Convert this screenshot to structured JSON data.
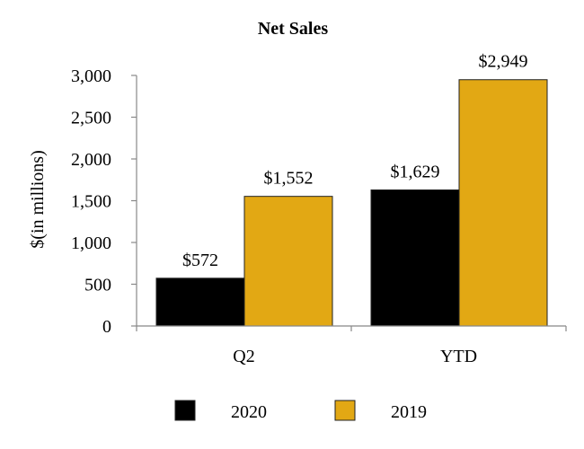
{
  "chart_data": {
    "type": "bar",
    "title": "Net Sales",
    "xlabel": "",
    "ylabel": "$(in millions)",
    "ylim": [
      0,
      3000
    ],
    "yticks": [
      0,
      500,
      1000,
      1500,
      2000,
      2500,
      3000
    ],
    "ytick_labels": [
      "0",
      "500",
      "1,000",
      "1,500",
      "2,000",
      "2,500",
      "3,000"
    ],
    "grid": false,
    "legend_position": "bottom-center",
    "categories": [
      "Q2",
      "YTD"
    ],
    "series": [
      {
        "name": "2020",
        "color": "#000000",
        "values": [
          572,
          1629
        ],
        "labels": [
          "$572",
          "$1,629"
        ]
      },
      {
        "name": "2019",
        "color": "#E2A814",
        "values": [
          1552,
          2949
        ],
        "labels": [
          "$1,552",
          "$2,949"
        ]
      }
    ]
  }
}
